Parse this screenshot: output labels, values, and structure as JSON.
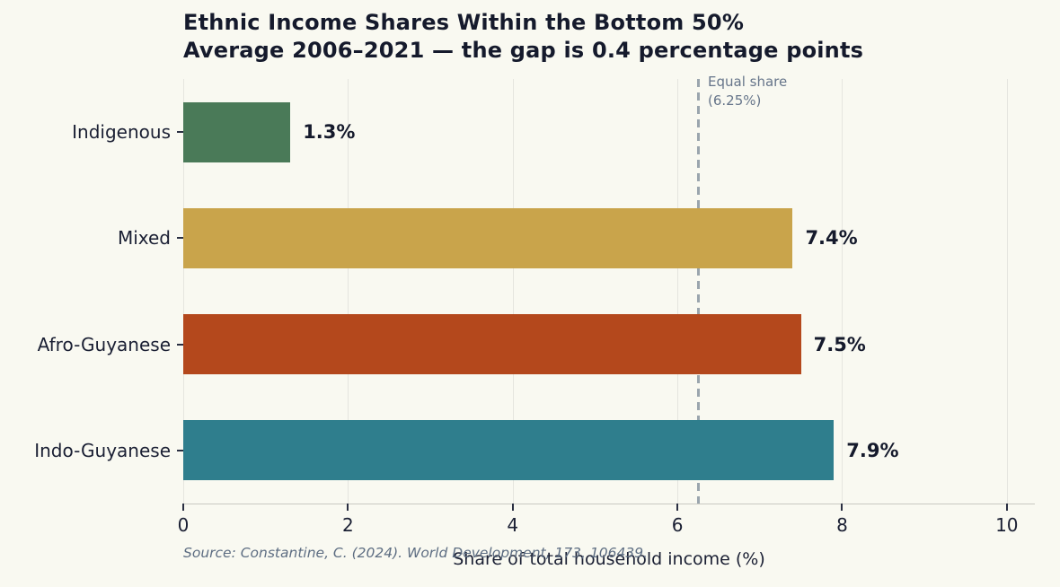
{
  "title": {
    "line1": "Ethnic Income Shares Within the Bottom 50%",
    "line2": "Average 2006–2021 — the gap is 0.4 percentage points"
  },
  "source": "Source: Constantine, C. (2024). World Development, 173, 106439.",
  "chart_data": {
    "type": "bar",
    "orientation": "horizontal",
    "title": "Ethnic Income Shares Within the Bottom 50%",
    "subtitle": "Average 2006–2021 — the gap is 0.4 percentage points",
    "categories": [
      "Indigenous",
      "Mixed",
      "Afro-Guyanese",
      "Indo-Guyanese"
    ],
    "values": [
      1.3,
      7.4,
      7.5,
      7.9
    ],
    "value_labels": [
      "1.3%",
      "7.4%",
      "7.5%",
      "7.9%"
    ],
    "bar_colors": [
      "#4a7a58",
      "#c9a44b",
      "#b4481c",
      "#2f7e8d"
    ],
    "xlabel": "Share of total household income (%)",
    "ylabel": "",
    "x_tick_labels": [
      "0",
      "2",
      "4",
      "6",
      "8",
      "10"
    ],
    "x_tick_values": [
      0,
      2,
      4,
      6,
      8,
      10
    ],
    "xlim": [
      0,
      10.34
    ],
    "grid": true,
    "legend": null,
    "reference_line": {
      "value": 6.25,
      "label_line1": "Equal share",
      "label_line2": "(6.25%)",
      "style": "dashed",
      "color": "#9aa5ad"
    }
  },
  "colors": {
    "background": "#f9f9f1",
    "text_dark": "#1a1f33",
    "gridline": "#e5e5df",
    "spine": "#c9c9c2",
    "annotation_text": "#66758a",
    "source_text": "#5d6d82"
  }
}
